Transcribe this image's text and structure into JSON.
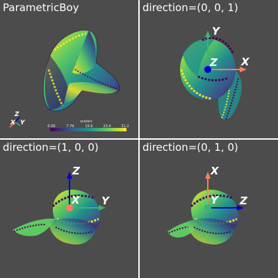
{
  "panes": {
    "top_left": {
      "title": "ParametricBoy",
      "orientation_widget": {
        "x_label": "X",
        "y_label": "Y",
        "z_label": "Z"
      },
      "scalar_bar": {
        "title": "scalars",
        "ticks": [
          "0.00",
          "7.79",
          "15.6",
          "23.4",
          "31.2"
        ],
        "colormap": [
          "#440154",
          "#3b528b",
          "#21918c",
          "#5ec962",
          "#fde725"
        ]
      }
    },
    "top_right": {
      "title": "direction=(0, 0, 1)",
      "axes": {
        "x_label": "X",
        "y_label": "Y",
        "z_label": "Z"
      }
    },
    "bottom_left": {
      "title": "direction=(1, 0, 0)",
      "axes": {
        "x_label": "X",
        "y_label": "Y",
        "z_label": "Z"
      }
    },
    "bottom_right": {
      "title": "direction=(0, 1, 0)",
      "axes": {
        "x_label": "X",
        "y_label": "Y",
        "z_label": "Z"
      }
    }
  },
  "colors": {
    "background": "#4c4c4c",
    "divider": "#ffffff",
    "axis_x": "#ff7f5f",
    "axis_y": "#3cb371",
    "axis_z": "#0000cd",
    "surface_dark": "#440154",
    "surface_mid": "#21918c",
    "surface_light": "#fde725"
  }
}
